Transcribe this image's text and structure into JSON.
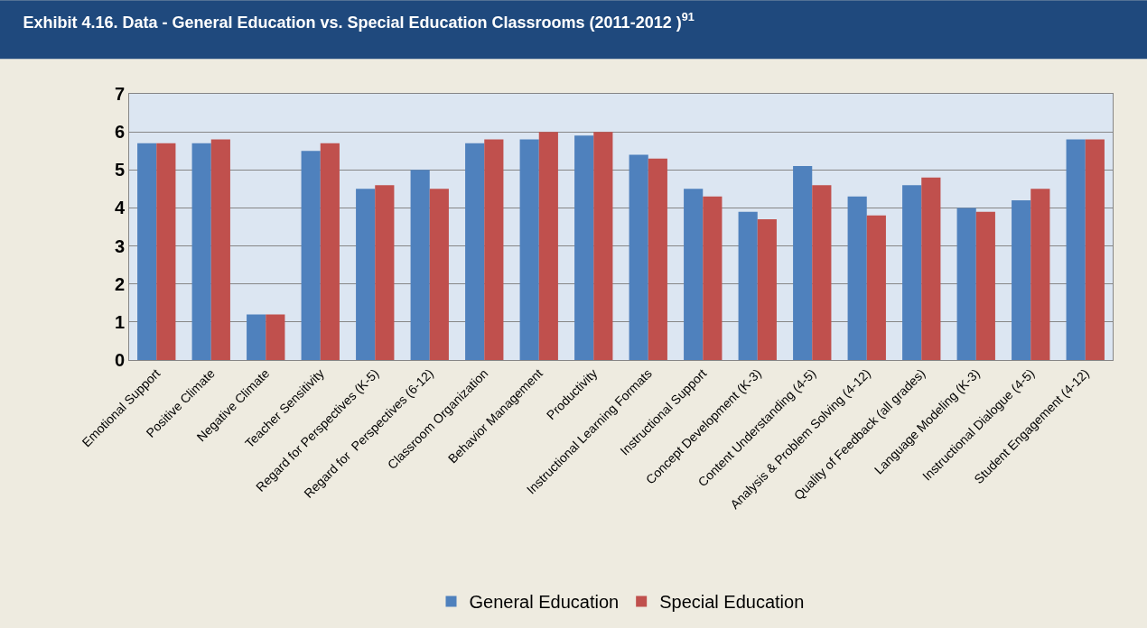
{
  "chart_data": {
    "type": "bar",
    "title": "Exhibit 4.16. Data - General Education vs. Special Education Classrooms (2011-2012 )$^{91}$",
    "categories": [
      "Emotional Support",
      "Positive Climate",
      "Negative Climate",
      "Teacher Sensitivity",
      "Regard for Perspectives (K-5)",
      "Regard for  Perspectives (6-12)",
      "Classroom Organization",
      "Behavior Management",
      "Productivity",
      "Instructional Learning Formats",
      "Instructional Support",
      "Concept Development (K-3)",
      "Content Understanding (4-5)",
      "Analysis & Problem Solving (4-12)",
      "Quality of Feedback (all grades)",
      "Language Modeling (K-3)",
      "Instructional Dialogue (4-5)",
      "Student Engagement (4-12)"
    ],
    "series": [
      {
        "name": "General Education",
        "color": "#4f81bd",
        "values": [
          5.7,
          5.7,
          1.2,
          5.5,
          4.5,
          5.0,
          5.7,
          5.8,
          5.9,
          5.4,
          4.5,
          3.9,
          5.1,
          4.3,
          4.6,
          4.0,
          4.2,
          5.8
        ]
      },
      {
        "name": "Special Education",
        "color": "#c0504d",
        "values": [
          5.7,
          5.8,
          1.2,
          5.7,
          4.6,
          4.5,
          5.8,
          6.0,
          6.0,
          5.3,
          4.3,
          3.7,
          4.6,
          3.8,
          4.8,
          3.9,
          4.5,
          5.8
        ]
      }
    ],
    "ylim": [
      0,
      7
    ],
    "yticks": [
      0,
      1,
      2,
      3,
      4,
      5,
      6,
      7
    ],
    "grid": "y",
    "legend": "bottom"
  }
}
